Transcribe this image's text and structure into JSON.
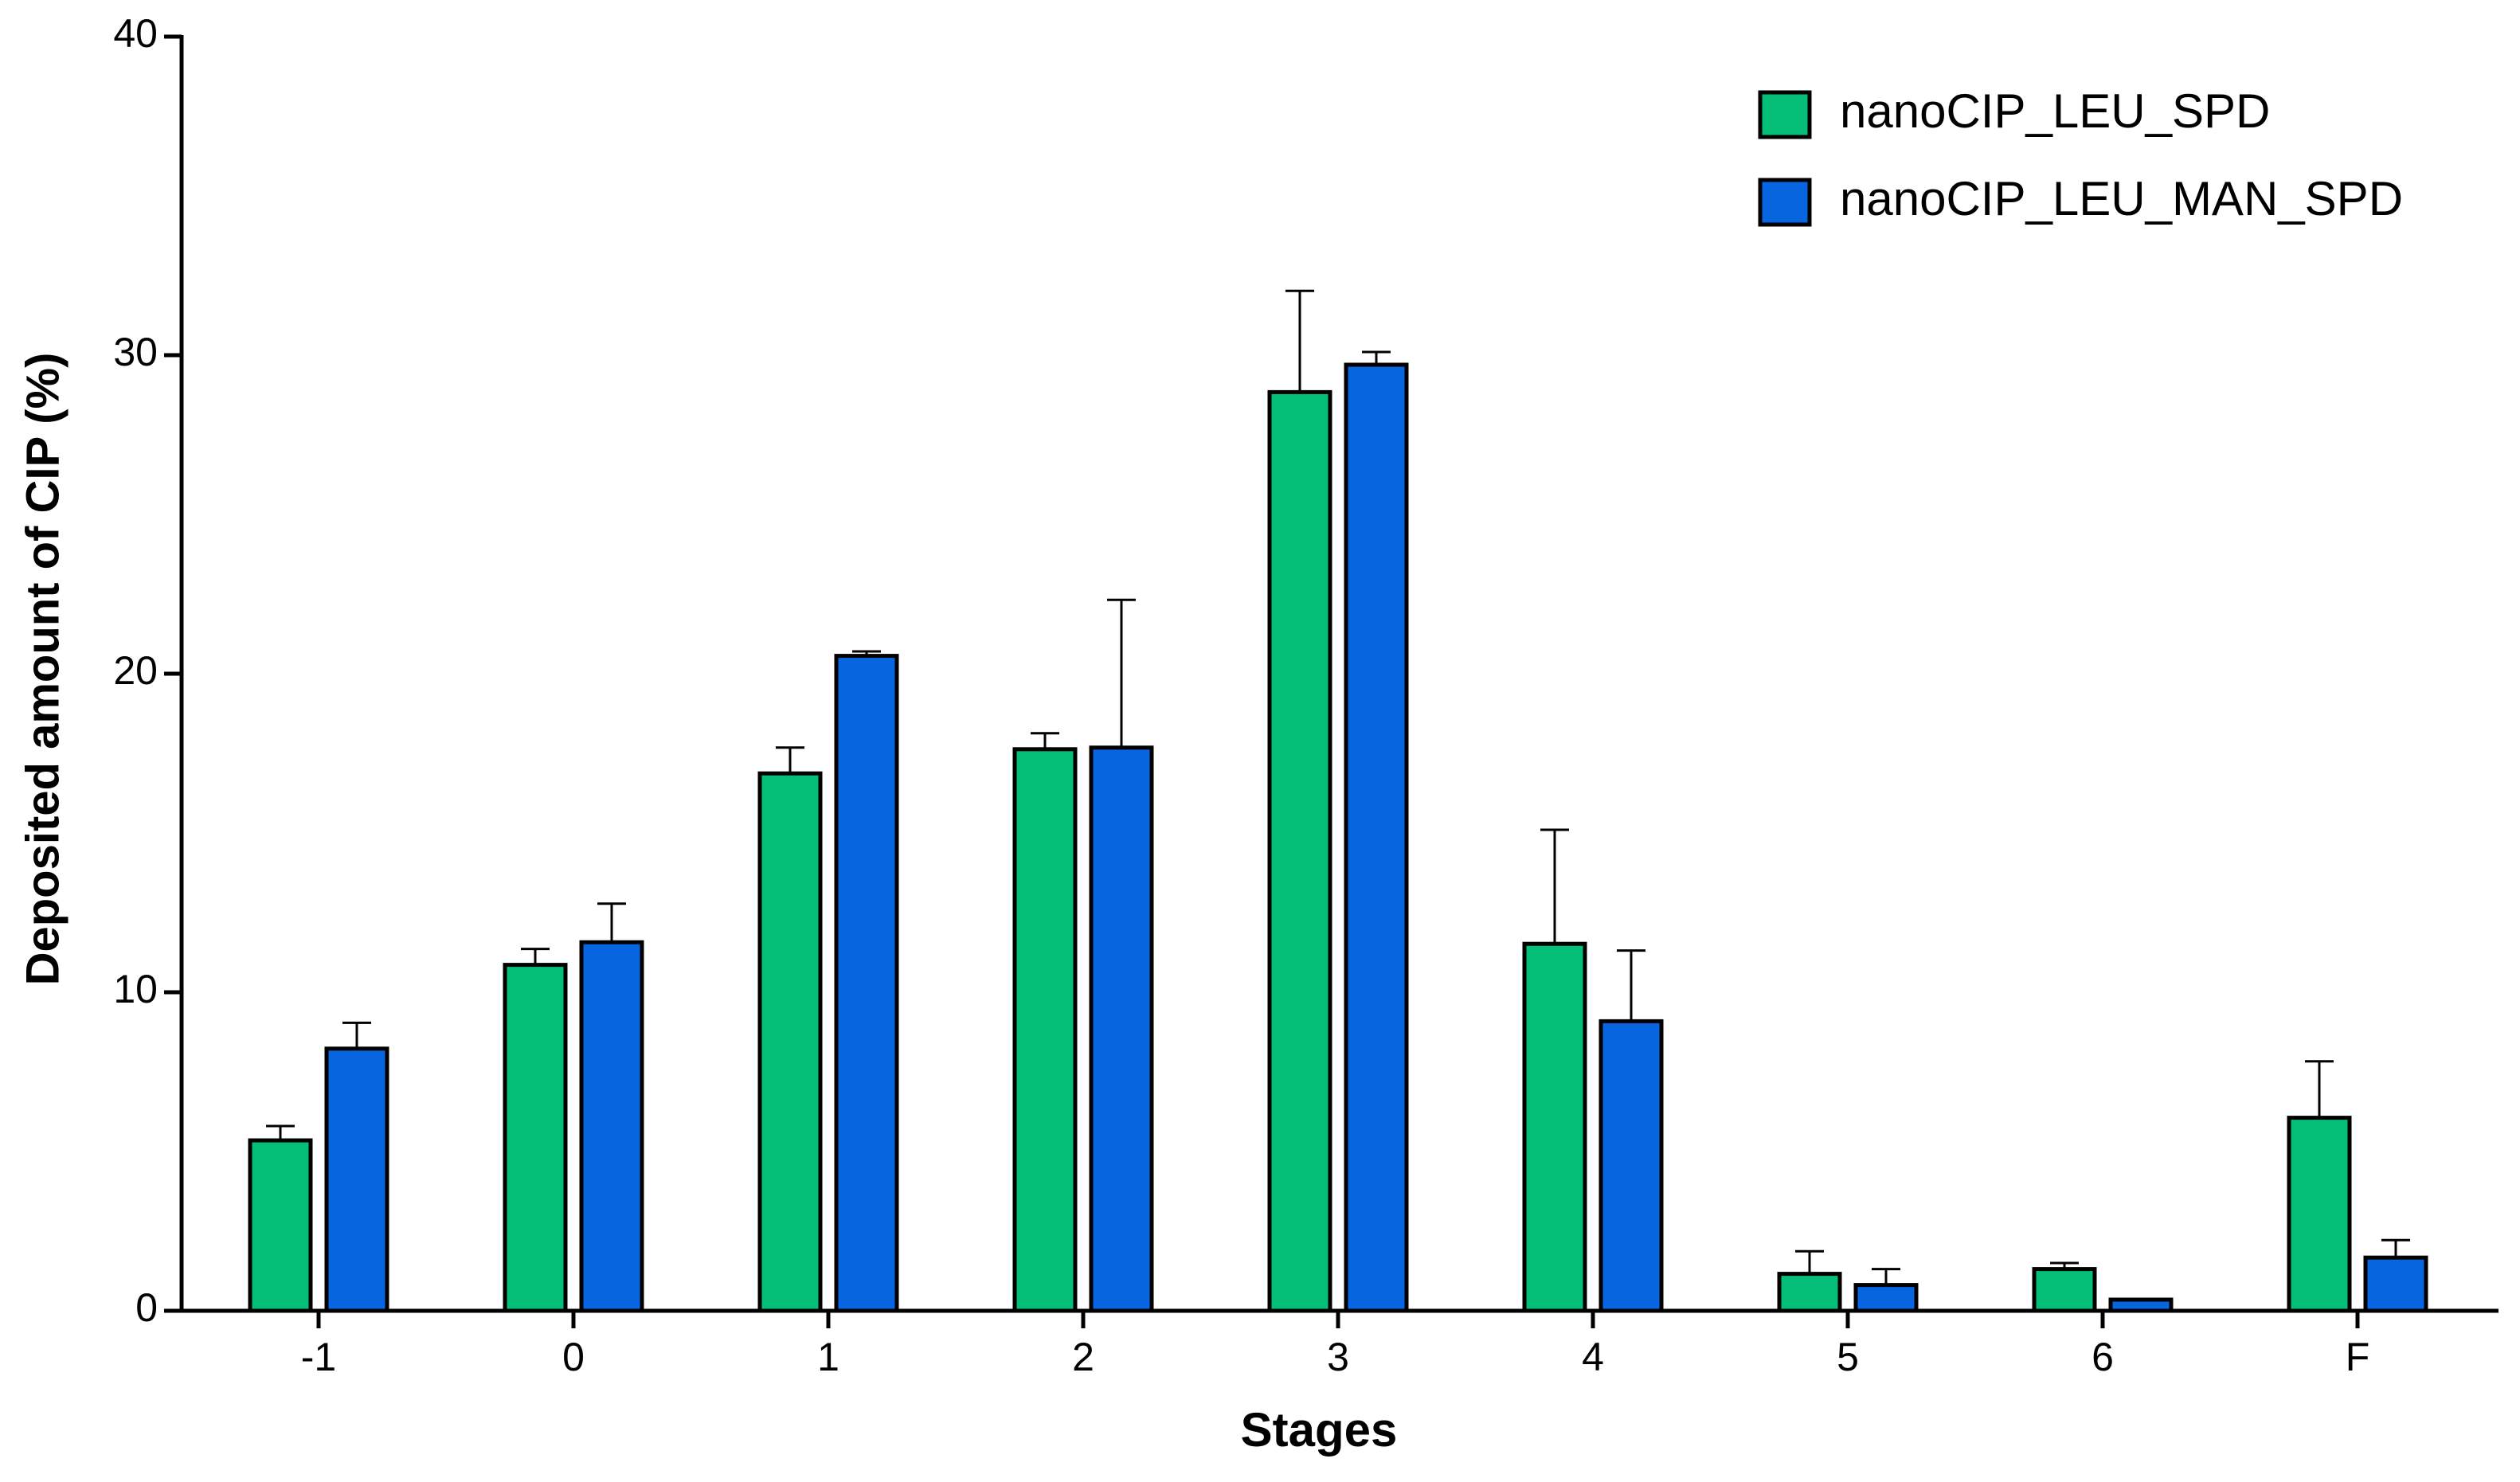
{
  "chart_data": {
    "type": "bar",
    "x_label": "Stages",
    "y_label": "Deposited amount of CIP (%)",
    "categories": [
      "-1",
      "0",
      "1",
      "2",
      "3",
      "4",
      "5",
      "6",
      "F"
    ],
    "series": [
      {
        "name": "nanoCIP_LEU_SPD",
        "color": "#05bf78",
        "values": [
          5.35,
          10.86,
          16.87,
          17.63,
          28.84,
          11.52,
          1.16,
          1.31,
          6.06
        ],
        "errors": [
          0.45,
          0.5,
          0.81,
          0.5,
          3.18,
          3.58,
          0.71,
          0.19,
          1.77
        ]
      },
      {
        "name": "nanoCIP_LEU_MAN_SPD",
        "color": "#0865e0",
        "values": [
          8.23,
          11.57,
          20.56,
          17.68,
          29.7,
          9.09,
          0.81,
          0.35,
          1.67
        ],
        "errors": [
          0.81,
          1.21,
          0.14,
          4.64,
          0.4,
          2.22,
          0.5,
          0,
          0.55
        ]
      }
    ],
    "ylim": [
      0,
      40
    ],
    "yticks": [
      0,
      10,
      20,
      30,
      40
    ],
    "grid": false,
    "legend": "top-right"
  }
}
